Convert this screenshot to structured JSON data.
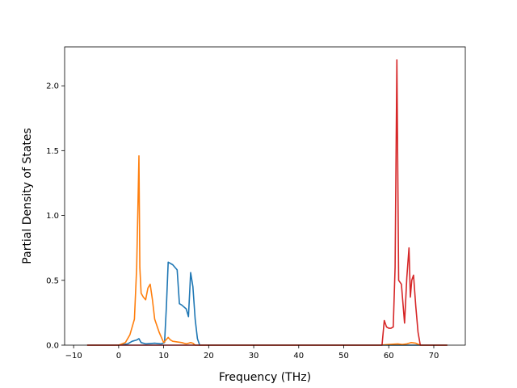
{
  "chart_data": {
    "type": "line",
    "title": "",
    "xlabel": "Frequency (THz)",
    "ylabel": "Partial Density of States",
    "xlim": [
      -12.0,
      77.0
    ],
    "ylim": [
      0.0,
      2.3
    ],
    "xticks": [
      -10,
      0,
      10,
      20,
      30,
      40,
      50,
      60,
      70
    ],
    "yticks": [
      0.0,
      0.5,
      1.0,
      1.5,
      2.0
    ],
    "xtick_labels": [
      "−10",
      "0",
      "10",
      "20",
      "30",
      "40",
      "50",
      "60",
      "70"
    ],
    "ytick_labels": [
      "0.0",
      "0.5",
      "1.0",
      "1.5",
      "2.0"
    ],
    "grid": false,
    "series": [
      {
        "color": "#1f77b4",
        "x": [
          -7,
          0,
          2,
          3,
          4,
          4.5,
          5,
          6,
          8,
          9.5,
          10.2,
          10.6,
          11.0,
          12,
          13,
          13.5,
          14,
          15,
          15.5,
          16,
          16.5,
          17,
          17.5,
          18,
          25,
          73
        ],
        "y": [
          0,
          0,
          0.01,
          0.03,
          0.04,
          0.05,
          0.02,
          0.01,
          0.015,
          0.01,
          0.02,
          0.3,
          0.64,
          0.62,
          0.58,
          0.32,
          0.31,
          0.28,
          0.22,
          0.56,
          0.45,
          0.2,
          0.05,
          0,
          0,
          0
        ]
      },
      {
        "color": "#ff7f0e",
        "x": [
          -7,
          0,
          1.5,
          2.5,
          3.5,
          4.0,
          4.5,
          4.7,
          5.0,
          5.5,
          6.0,
          6.5,
          7.0,
          7.5,
          8.0,
          9.0,
          10.0,
          10.5,
          11.0,
          11.5,
          12,
          14,
          15,
          15.5,
          16,
          16.5,
          17,
          20,
          58,
          60,
          62,
          63,
          64,
          65,
          66,
          67,
          73
        ],
        "y": [
          0,
          0,
          0.02,
          0.08,
          0.2,
          0.6,
          1.46,
          0.6,
          0.4,
          0.37,
          0.35,
          0.44,
          0.47,
          0.35,
          0.2,
          0.1,
          0.02,
          0.04,
          0.06,
          0.04,
          0.03,
          0.02,
          0.01,
          0.015,
          0.02,
          0.015,
          0,
          0,
          0,
          0.005,
          0.01,
          0.005,
          0.01,
          0.02,
          0.015,
          0,
          0
        ]
      },
      {
        "color": "#d62728",
        "x": [
          -7,
          58.5,
          59.0,
          59.5,
          60.0,
          60.5,
          61.0,
          61.4,
          61.8,
          62.2,
          62.8,
          63.5,
          64.0,
          64.5,
          64.8,
          65.1,
          65.5,
          66.0,
          66.5,
          67.0,
          68,
          73
        ],
        "y": [
          0,
          0,
          0.19,
          0.14,
          0.13,
          0.13,
          0.14,
          0.6,
          2.2,
          0.5,
          0.47,
          0.17,
          0.52,
          0.75,
          0.37,
          0.5,
          0.54,
          0.3,
          0.1,
          0,
          0,
          0
        ]
      }
    ]
  }
}
